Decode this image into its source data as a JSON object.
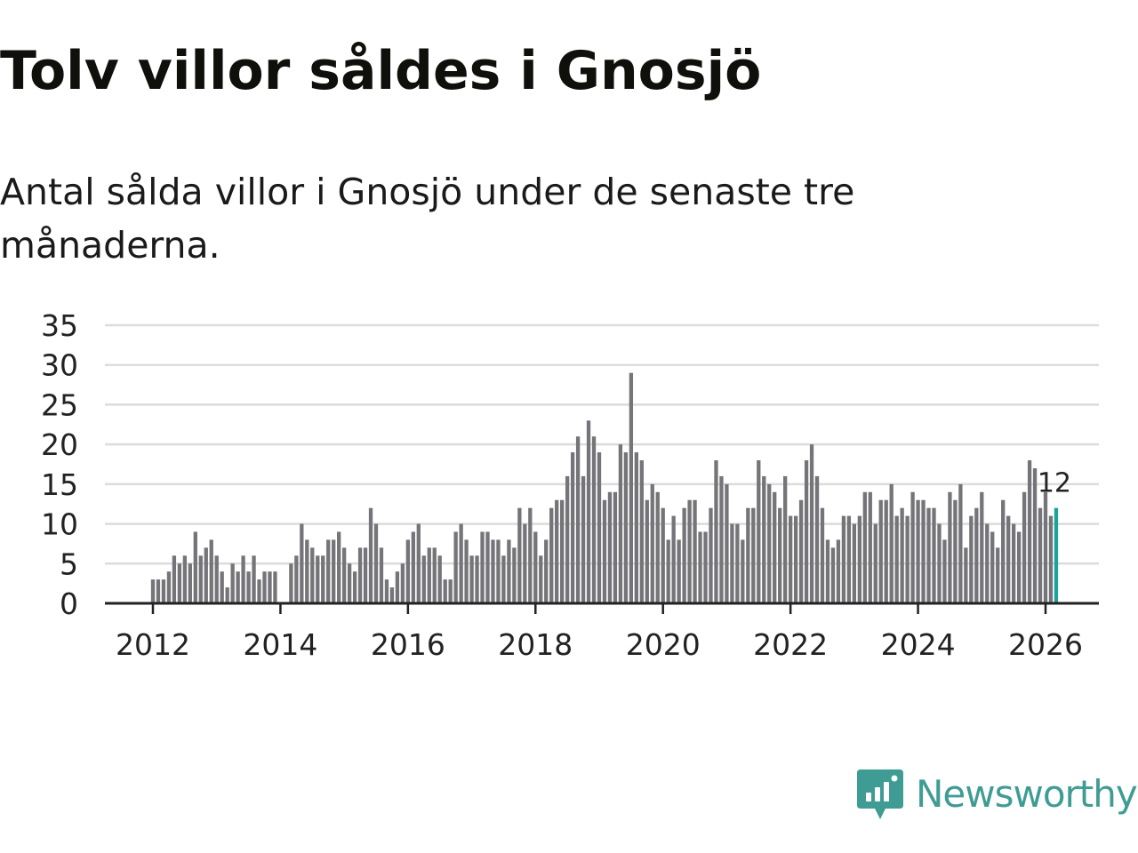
{
  "header": {
    "title": "Tolv villor såldes i Gnosjö",
    "subtitle": "Antal sålda villor i Gnosjö under de senaste tre månaderna."
  },
  "brand": {
    "name": "Newsworthy",
    "color": "#3f9c94",
    "icon": "newsworthy-logo-icon"
  },
  "colors": {
    "bar": "#757478",
    "highlight": "#1aa39a",
    "grid": "#dcdcdc",
    "axis": "#222222",
    "text": "#222222"
  },
  "chart_data": {
    "type": "bar",
    "title": "Tolv villor såldes i Gnosjö",
    "subtitle": "Antal sålda villor i Gnosjö under de senaste tre månaderna.",
    "xlabel": "",
    "ylabel": "",
    "ylim": [
      0,
      35
    ],
    "yticks": [
      0,
      5,
      10,
      15,
      20,
      25,
      30,
      35
    ],
    "grid": true,
    "legend": "none",
    "x_start": "2012-01",
    "x_end": "2026-02",
    "x_tick_labels": [
      "2012",
      "2014",
      "2016",
      "2018",
      "2020",
      "2022",
      "2024",
      "2026"
    ],
    "x_tick_dates": [
      "2012-01",
      "2014-01",
      "2016-01",
      "2018-01",
      "2020-01",
      "2022-01",
      "2024-01",
      "2026-01"
    ],
    "highlight_label": "12",
    "series": [
      {
        "name": "Antal sålda villor",
        "start": "2012-01",
        "values": [
          3,
          3,
          3,
          4,
          6,
          5,
          6,
          5,
          9,
          6,
          7,
          8,
          6,
          4,
          2,
          5,
          4,
          6,
          4,
          6,
          3,
          4,
          4,
          4,
          null,
          null,
          5,
          6,
          10,
          8,
          7,
          6,
          6,
          8,
          8,
          9,
          7,
          5,
          4,
          7,
          7,
          12,
          10,
          7,
          3,
          2,
          4,
          5,
          8,
          9,
          10,
          6,
          7,
          7,
          6,
          3,
          3,
          9,
          10,
          8,
          6,
          6,
          9,
          9,
          8,
          8,
          6,
          8,
          7,
          12,
          10,
          12,
          9,
          6,
          8,
          12,
          13,
          13,
          16,
          19,
          21,
          16,
          23,
          21,
          19,
          13,
          14,
          14,
          20,
          19,
          29,
          19,
          18,
          13,
          15,
          14,
          12,
          8,
          11,
          8,
          12,
          13,
          13,
          9,
          9,
          12,
          18,
          16,
          15,
          10,
          10,
          8,
          12,
          12,
          18,
          16,
          15,
          14,
          12,
          16,
          11,
          11,
          13,
          18,
          20,
          16,
          12,
          8,
          7,
          8,
          11,
          11,
          10,
          11,
          14,
          14,
          10,
          13,
          13,
          15,
          11,
          12,
          11,
          14,
          13,
          13,
          12,
          12,
          10,
          8,
          14,
          13,
          15,
          7,
          11,
          12,
          14,
          10,
          9,
          7,
          13,
          11,
          10,
          9,
          14,
          18,
          17,
          12,
          14,
          11,
          12
        ]
      }
    ]
  }
}
